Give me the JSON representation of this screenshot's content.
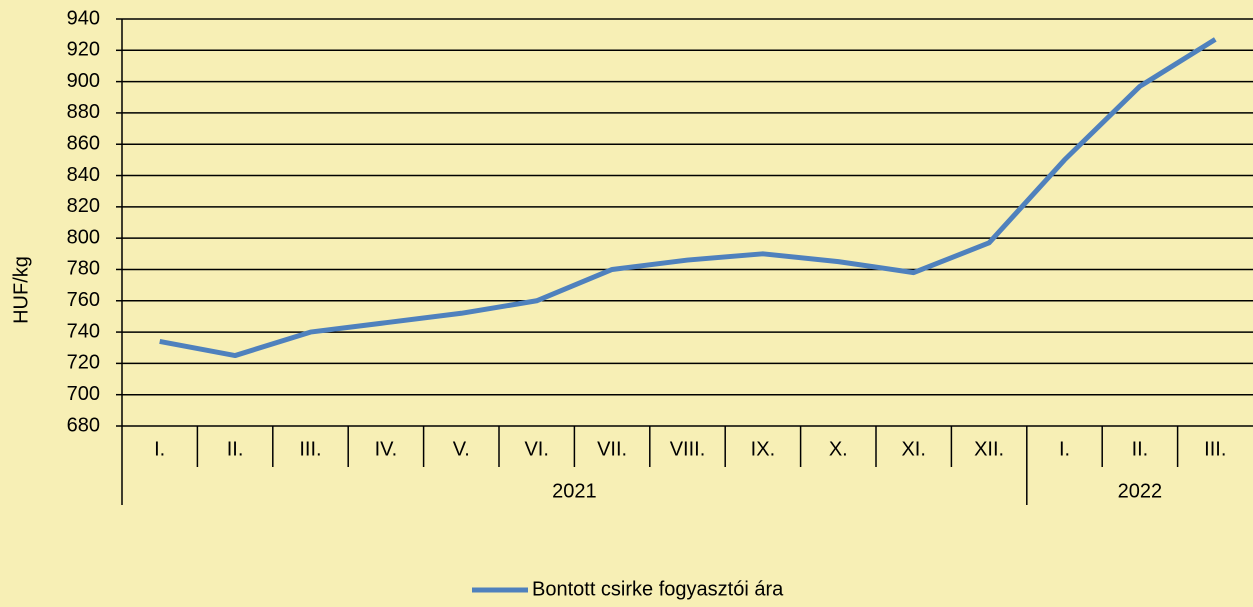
{
  "chart_data": {
    "type": "line",
    "ylabel": "HUF/kg",
    "groups": [
      {
        "name": "2021",
        "categories": [
          "I.",
          "II.",
          "III.",
          "IV.",
          "V.",
          "VI.",
          "VII.",
          "VIII.",
          "IX.",
          "X.",
          "XI.",
          "XII."
        ]
      },
      {
        "name": "2022",
        "categories": [
          "I.",
          "II.",
          "III."
        ]
      }
    ],
    "series": [
      {
        "name": "Bontott csirke fogyasztói ára",
        "color": "#4f81bd",
        "values": [
          734,
          725,
          740,
          746,
          752,
          760,
          780,
          786,
          790,
          785,
          778,
          797,
          850,
          897,
          927
        ]
      }
    ],
    "ylim": [
      680,
      940
    ],
    "yticks": [
      680,
      700,
      720,
      740,
      760,
      780,
      800,
      820,
      840,
      860,
      880,
      900,
      920,
      940
    ],
    "grid": true,
    "legend": "bottom"
  }
}
